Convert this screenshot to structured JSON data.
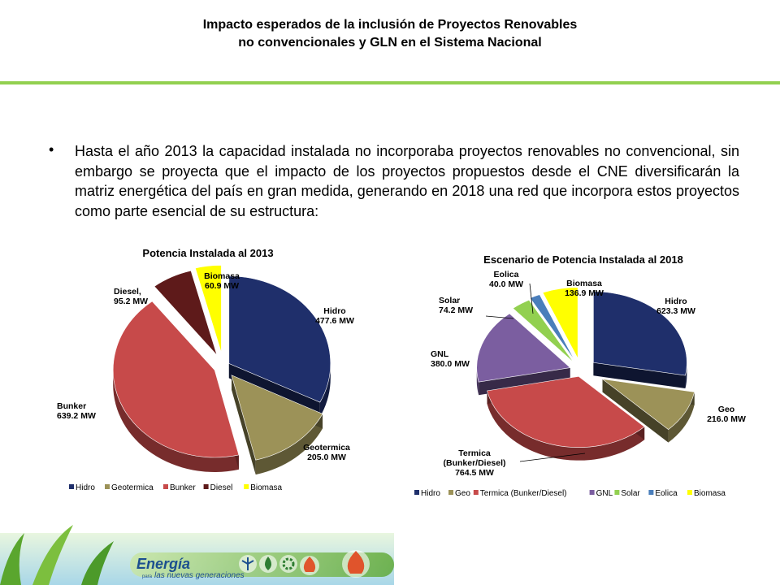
{
  "header": {
    "title_line1": "Impacto  esperados de la inclusión de Proyectos Renovables",
    "title_line2": "no convencionales y GLN en el Sistema Nacional"
  },
  "body": {
    "bullet": "•",
    "paragraph": "Hasta el año 2013 la capacidad instalada no incorporaba proyectos renovables no convencional, sin embargo se proyecta que el impacto de los proyectos propuestos desde el CNE diversificarán la matriz energética del país en gran medida, generando en 2018 una red que incorpora estos proyectos como parte esencial de su estructura:"
  },
  "footer": {
    "logo_word": "Energía",
    "logo_small": "para",
    "logo_tagline": "las nuevas generaciones"
  },
  "chart_data": [
    {
      "type": "pie",
      "title": "Potencia Instalada al 2013",
      "unit": "MW",
      "slices": [
        {
          "name": "Hidro",
          "value": 477.6,
          "color": "#1f2f6b",
          "label": [
            "Hidro",
            "477.6 MW"
          ]
        },
        {
          "name": "Geotermica",
          "value": 205.0,
          "color": "#9c9258",
          "label": [
            "Geotermica",
            "205.0 MW"
          ]
        },
        {
          "name": "Bunker",
          "value": 639.2,
          "color": "#c74a4a",
          "label": [
            "Bunker",
            "639.2 MW"
          ]
        },
        {
          "name": "Diesel",
          "value": 95.2,
          "color": "#5e1a1a",
          "label": [
            "Diesel,",
            "95.2 MW"
          ]
        },
        {
          "name": "Biomasa",
          "value": 60.9,
          "color": "#ffff00",
          "label": [
            "Biomasa",
            "60.9 MW"
          ]
        }
      ],
      "legend": [
        "Hidro",
        "Geotermica",
        "Bunker",
        "Diesel",
        "Biomasa"
      ],
      "legend_position": "bottom"
    },
    {
      "type": "pie",
      "title": "Escenario de Potencia Instalada al 2018",
      "unit": "MW",
      "slices": [
        {
          "name": "Hidro",
          "value": 623.3,
          "color": "#1f2f6b",
          "label": [
            "Hidro",
            "623.3 MW"
          ]
        },
        {
          "name": "Geo",
          "value": 216.0,
          "color": "#9c9258",
          "label": [
            "Geo",
            "216.0 MW"
          ]
        },
        {
          "name": "Termica (Bunker/Diesel)",
          "value": 764.5,
          "color": "#c74a4a",
          "label": [
            "Termica",
            "(Bunker/Diesel)",
            "764.5 MW"
          ]
        },
        {
          "name": "GNL",
          "value": 380.0,
          "color": "#7b5ea0",
          "label": [
            "GNL",
            "380.0 MW"
          ]
        },
        {
          "name": "Solar",
          "value": 74.2,
          "color": "#92d050",
          "label": [
            "Solar",
            "74.2 MW"
          ]
        },
        {
          "name": "Eolica",
          "value": 40.0,
          "color": "#4a7ebb",
          "label": [
            "Eolica",
            "40.0 MW"
          ]
        },
        {
          "name": "Biomasa",
          "value": 136.9,
          "color": "#ffff00",
          "label": [
            "Biomasa",
            "136.9 MW"
          ]
        }
      ],
      "legend": [
        "Hidro",
        "Geo",
        "Termica (Bunker/Diesel)",
        "GNL",
        "Solar",
        "Eolica",
        "Biomasa"
      ],
      "legend_position": "bottom"
    }
  ]
}
